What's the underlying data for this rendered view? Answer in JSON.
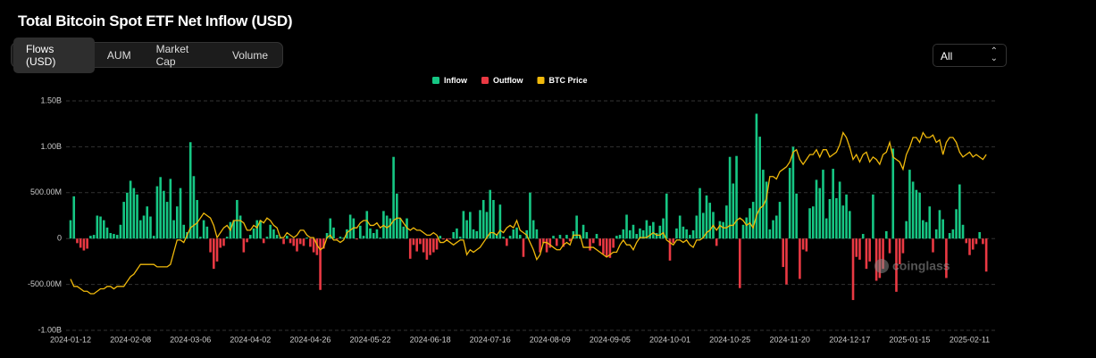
{
  "tabs": [
    "Flows (USD)",
    "AUM",
    "Market Cap",
    "Volume"
  ],
  "range": "All",
  "watermark": "coinglass",
  "chart_data": {
    "type": "bar",
    "title": "Total Bitcoin Spot ETF Net Inflow (USD)",
    "grid": true,
    "ylim": [
      -1000000000,
      1500000000
    ],
    "yticks": [
      {
        "value": -1000000000,
        "label": "-1.00B"
      },
      {
        "value": -500000000,
        "label": "-500.00M"
      },
      0,
      {
        "value": 500000000,
        "label": "500.00M"
      },
      {
        "value": 1000000000,
        "label": "1.00B"
      },
      {
        "value": 1500000000,
        "label": "1.50B"
      }
    ],
    "y2lim": [
      25000,
      119000
    ],
    "series": [
      {
        "name": "Inflow",
        "color": "#16c784"
      },
      {
        "name": "Outflow",
        "color": "#ea3943"
      },
      {
        "name": "BTC Price",
        "color": "#f0b90b",
        "axis": "y2",
        "values": [
          46000,
          43000,
          43000,
          42000,
          41000,
          41000,
          40000,
          40000,
          41000,
          42000,
          42000,
          43000,
          43000,
          42000,
          43000,
          43000,
          43000,
          45000,
          47000,
          48000,
          50000,
          52000,
          52000,
          52000,
          52000,
          52000,
          51000,
          51000,
          51000,
          51000,
          52000,
          57000,
          62000,
          62000,
          61000,
          64000,
          67000,
          68000,
          69000,
          71000,
          73000,
          72000,
          71000,
          68000,
          63000,
          65000,
          67000,
          68000,
          66000,
          70000,
          70000,
          70000,
          69000,
          66000,
          66000,
          68000,
          67000,
          70000,
          69000,
          71000,
          70000,
          68000,
          67000,
          63000,
          63000,
          65000,
          64000,
          63000,
          64000,
          66000,
          66000,
          64000,
          63000,
          63000,
          60000,
          58000,
          59000,
          63000,
          64000,
          62000,
          62000,
          61000,
          62000,
          65000,
          66000,
          67000,
          67000,
          69000,
          70000,
          70000,
          68000,
          68000,
          69000,
          67000,
          68000,
          67000,
          68000,
          70000,
          71000,
          71000,
          69000,
          67000,
          66000,
          67000,
          66000,
          66000,
          65000,
          64000,
          64000,
          65000,
          64000,
          61000,
          61000,
          62000,
          61000,
          60000,
          61000,
          62000,
          62000,
          56000,
          58000,
          57000,
          58000,
          59000,
          61000,
          63000,
          65000,
          65000,
          64000,
          66000,
          65000,
          67000,
          68000,
          67000,
          70000,
          66000,
          65000,
          64000,
          61000,
          58000,
          54000,
          56000,
          61000,
          61000,
          60000,
          59000,
          58000,
          58000,
          60000,
          61000,
          60000,
          64000,
          64000,
          64000,
          59000,
          59000,
          59000,
          59000,
          58000,
          57000,
          56000,
          55000,
          56000,
          57000,
          57000,
          60000,
          62000,
          60000,
          60000,
          58000,
          61000,
          63000,
          63000,
          63000,
          64000,
          65000,
          64000,
          64000,
          65000,
          62000,
          61000,
          60000,
          62000,
          62000,
          61000,
          62000,
          60000,
          59000,
          62000,
          62000,
          63000,
          65000,
          66000,
          68000,
          66000,
          68000,
          67000,
          67000,
          68000,
          68000,
          70000,
          71000,
          70000,
          68000,
          69000,
          67000,
          72000,
          75000,
          76000,
          79000,
          88000,
          88000,
          87000,
          90000,
          91000,
          92000,
          94000,
          98000,
          99000,
          95000,
          93000,
          95000,
          97000,
          97000,
          99000,
          96000,
          99000,
          99000,
          96000,
          97000,
          98000,
          101000,
          106000,
          104000,
          100000,
          95000,
          97000,
          94000,
          97000,
          98000,
          94000,
          96000,
          95000,
          93000,
          97000,
          98000,
          102000,
          96000,
          95000,
          94000,
          91000,
          97000,
          100000,
          104000,
          104000,
          102000,
          106000,
          104000,
          104000,
          105000,
          102000,
          103000,
          97000,
          102000,
          104000,
          104000,
          102000,
          98000,
          96000,
          97000,
          98000,
          96000,
          97000,
          96000,
          95000,
          97000
        ]
      }
    ],
    "values": [
      200000000.0,
      460000000.0,
      -50000000.0,
      -100000000.0,
      -130000000.0,
      -110000000.0,
      30000000.0,
      40000000.0,
      250000000.0,
      240000000.0,
      200000000.0,
      120000000.0,
      60000000.0,
      50000000.0,
      40000000.0,
      150000000.0,
      400000000.0,
      500000000.0,
      630000000.0,
      550000000.0,
      480000000.0,
      200000000.0,
      250000000.0,
      350000000.0,
      240000000.0,
      30000000.0,
      570000000.0,
      670000000.0,
      520000000.0,
      400000000.0,
      650000000.0,
      200000000.0,
      350000000.0,
      550000000.0,
      150000000.0,
      70000000.0,
      1050000000.0,
      680000000.0,
      420000000.0,
      20000000.0,
      200000000.0,
      130000000.0,
      -150000000.0,
      -330000000.0,
      -250000000.0,
      -100000000.0,
      -80000000.0,
      20000000.0,
      180000000.0,
      200000000.0,
      420000000.0,
      250000000.0,
      -150000000.0,
      -40000000.0,
      40000000.0,
      110000000.0,
      200000000.0,
      200000000.0,
      -50000000.0,
      20000000.0,
      150000000.0,
      100000000.0,
      40000000.0,
      10000000.0,
      -60000000.0,
      30000000.0,
      -50000000.0,
      -80000000.0,
      -140000000.0,
      -60000000.0,
      -80000000.0,
      10000000.0,
      -90000000.0,
      -150000000.0,
      -180000000.0,
      -560000000.0,
      -110000000.0,
      60000000.0,
      220000000.0,
      120000000.0,
      -10000000.0,
      20000000.0,
      10000000.0,
      100000000.0,
      260000000.0,
      220000000.0,
      -10000000.0,
      140000000.0,
      30000000.0,
      300000000.0,
      110000000.0,
      60000000.0,
      100000000.0,
      10000000.0,
      300000000.0,
      250000000.0,
      220000000.0,
      890000000.0,
      490000000.0,
      220000000.0,
      130000000.0,
      220000000.0,
      -220000000.0,
      -70000000.0,
      -140000000.0,
      -60000000.0,
      -150000000.0,
      -230000000.0,
      -180000000.0,
      -150000000.0,
      -120000000.0,
      30000000.0,
      -10000000.0,
      -20000000.0,
      -10000000.0,
      70000000.0,
      110000000.0,
      20000000.0,
      300000000.0,
      200000000.0,
      290000000.0,
      100000000.0,
      80000000.0,
      310000000.0,
      420000000.0,
      290000000.0,
      530000000.0,
      420000000.0,
      50000000.0,
      370000000.0,
      20000000.0,
      -80000000.0,
      30000000.0,
      100000000.0,
      120000000.0,
      40000000.0,
      -200000000.0,
      90000000.0,
      500000000.0,
      200000000.0,
      100000000.0,
      -150000000.0,
      -50000000.0,
      -150000000.0,
      -100000000.0,
      30000000.0,
      -80000000.0,
      40000000.0,
      -90000000.0,
      40000000.0,
      -30000000.0,
      80000000.0,
      250000000.0,
      30000000.0,
      150000000.0,
      70000000.0,
      -130000000.0,
      -50000000.0,
      50000000.0,
      -80000000.0,
      -170000000.0,
      -200000000.0,
      -210000000.0,
      -100000000.0,
      30000000.0,
      40000000.0,
      100000000.0,
      260000000.0,
      90000000.0,
      150000000.0,
      50000000.0,
      110000000.0,
      90000000.0,
      200000000.0,
      140000000.0,
      180000000.0,
      60000000.0,
      140000000.0,
      220000000.0,
      490000000.0,
      -240000000.0,
      -50000000.0,
      110000000.0,
      250000000.0,
      130000000.0,
      100000000.0,
      40000000.0,
      90000000.0,
      250000000.0,
      550000000.0,
      280000000.0,
      470000000.0,
      390000000.0,
      290000000.0,
      -80000000.0,
      190000000.0,
      180000000.0,
      360000000.0,
      890000000.0,
      600000000.0,
      900000000.0,
      -540000000.0,
      150000000.0,
      230000000.0,
      330000000.0,
      400000000.0,
      1360000000.0,
      1110000000.0,
      750000000.0,
      620000000.0,
      100000000.0,
      200000000.0,
      250000000.0,
      400000000.0,
      -310000000.0,
      -500000000.0,
      770000000.0,
      1000000000.0,
      490000000.0,
      -440000000.0,
      -120000000.0,
      -140000000.0,
      330000000.0,
      350000000.0,
      640000000.0,
      550000000.0,
      750000000.0,
      220000000.0,
      430000000.0,
      760000000.0,
      440000000.0,
      620000000.0,
      360000000.0,
      480000000.0,
      300000000.0,
      -670000000.0,
      -200000000.0,
      -230000000.0,
      50000000.0,
      -330000000.0,
      -250000000.0,
      480000000.0,
      -460000000.0,
      -430000000.0,
      -330000000.0,
      80000000.0,
      -160000000.0,
      980000000.0,
      -580000000.0,
      -280000000.0,
      -160000000.0,
      190000000.0,
      750000000.0,
      620000000.0,
      530000000.0,
      500000000.0,
      200000000.0,
      180000000.0,
      350000000.0,
      -150000000.0,
      100000000.0,
      310000000.0,
      210000000.0,
      -430000000.0,
      60000000.0,
      100000000.0,
      320000000.0,
      590000000.0,
      150000000.0,
      -50000000.0,
      -180000000.0,
      -120000000.0,
      -60000000.0,
      70000000.0,
      -60000000.0,
      -360000000.0
    ],
    "categories": [
      "2024-01-12",
      null,
      null,
      null,
      null,
      null,
      null,
      null,
      null,
      null,
      null,
      null,
      null,
      null,
      null,
      null,
      null,
      null,
      "2024-02-08",
      null,
      null,
      null,
      null,
      null,
      null,
      null,
      null,
      null,
      null,
      null,
      null,
      null,
      null,
      null,
      null,
      null,
      "2024-03-06",
      null,
      null,
      null,
      null,
      null,
      null,
      null,
      null,
      null,
      null,
      null,
      null,
      null,
      null,
      null,
      null,
      null,
      "2024-04-02",
      null,
      null,
      null,
      null,
      null,
      null,
      null,
      null,
      null,
      null,
      null,
      null,
      null,
      null,
      null,
      null,
      null,
      "2024-04-26",
      null,
      null,
      null,
      null,
      null,
      null,
      null,
      null,
      null,
      null,
      null,
      null,
      null,
      null,
      null,
      null,
      null,
      "2024-05-22",
      null,
      null,
      null,
      null,
      null,
      null,
      null,
      null,
      null,
      null,
      null,
      null,
      null,
      null,
      null,
      null,
      null,
      "2024-06-18",
      null,
      null,
      null,
      null,
      null,
      null,
      null,
      null,
      null,
      null,
      null,
      null,
      null,
      null,
      null,
      null,
      null,
      "2024-07-16",
      null,
      null,
      null,
      null,
      null,
      null,
      null,
      null,
      null,
      null,
      null,
      null,
      null,
      null,
      null,
      null,
      null,
      "2024-08-09",
      null,
      null,
      null,
      null,
      null,
      null,
      null,
      null,
      null,
      null,
      null,
      null,
      null,
      null,
      null,
      null,
      null,
      "2024-09-05",
      null,
      null,
      null,
      null,
      null,
      null,
      null,
      null,
      null,
      null,
      null,
      null,
      null,
      null,
      null,
      null,
      null,
      "2024-10-01",
      null,
      null,
      null,
      null,
      null,
      null,
      null,
      null,
      null,
      null,
      null,
      null,
      null,
      null,
      null,
      null,
      null,
      "2024-10-25",
      null,
      null,
      null,
      null,
      null,
      null,
      null,
      null,
      null,
      null,
      null,
      null,
      null,
      null,
      null,
      null,
      null,
      "2024-11-20",
      null,
      null,
      null,
      null,
      null,
      null,
      null,
      null,
      null,
      null,
      null,
      null,
      null,
      null,
      null,
      null,
      null,
      "2024-12-17",
      null,
      null,
      null,
      null,
      null,
      null,
      null,
      null,
      null,
      null,
      null,
      null,
      null,
      null,
      null,
      null,
      null,
      "2025-01-15",
      null,
      null,
      null,
      null,
      null,
      null,
      null,
      null,
      null,
      null,
      null,
      null,
      null,
      null,
      null,
      null,
      null,
      "2025-02-11",
      null,
      null,
      null,
      null,
      null
    ]
  }
}
